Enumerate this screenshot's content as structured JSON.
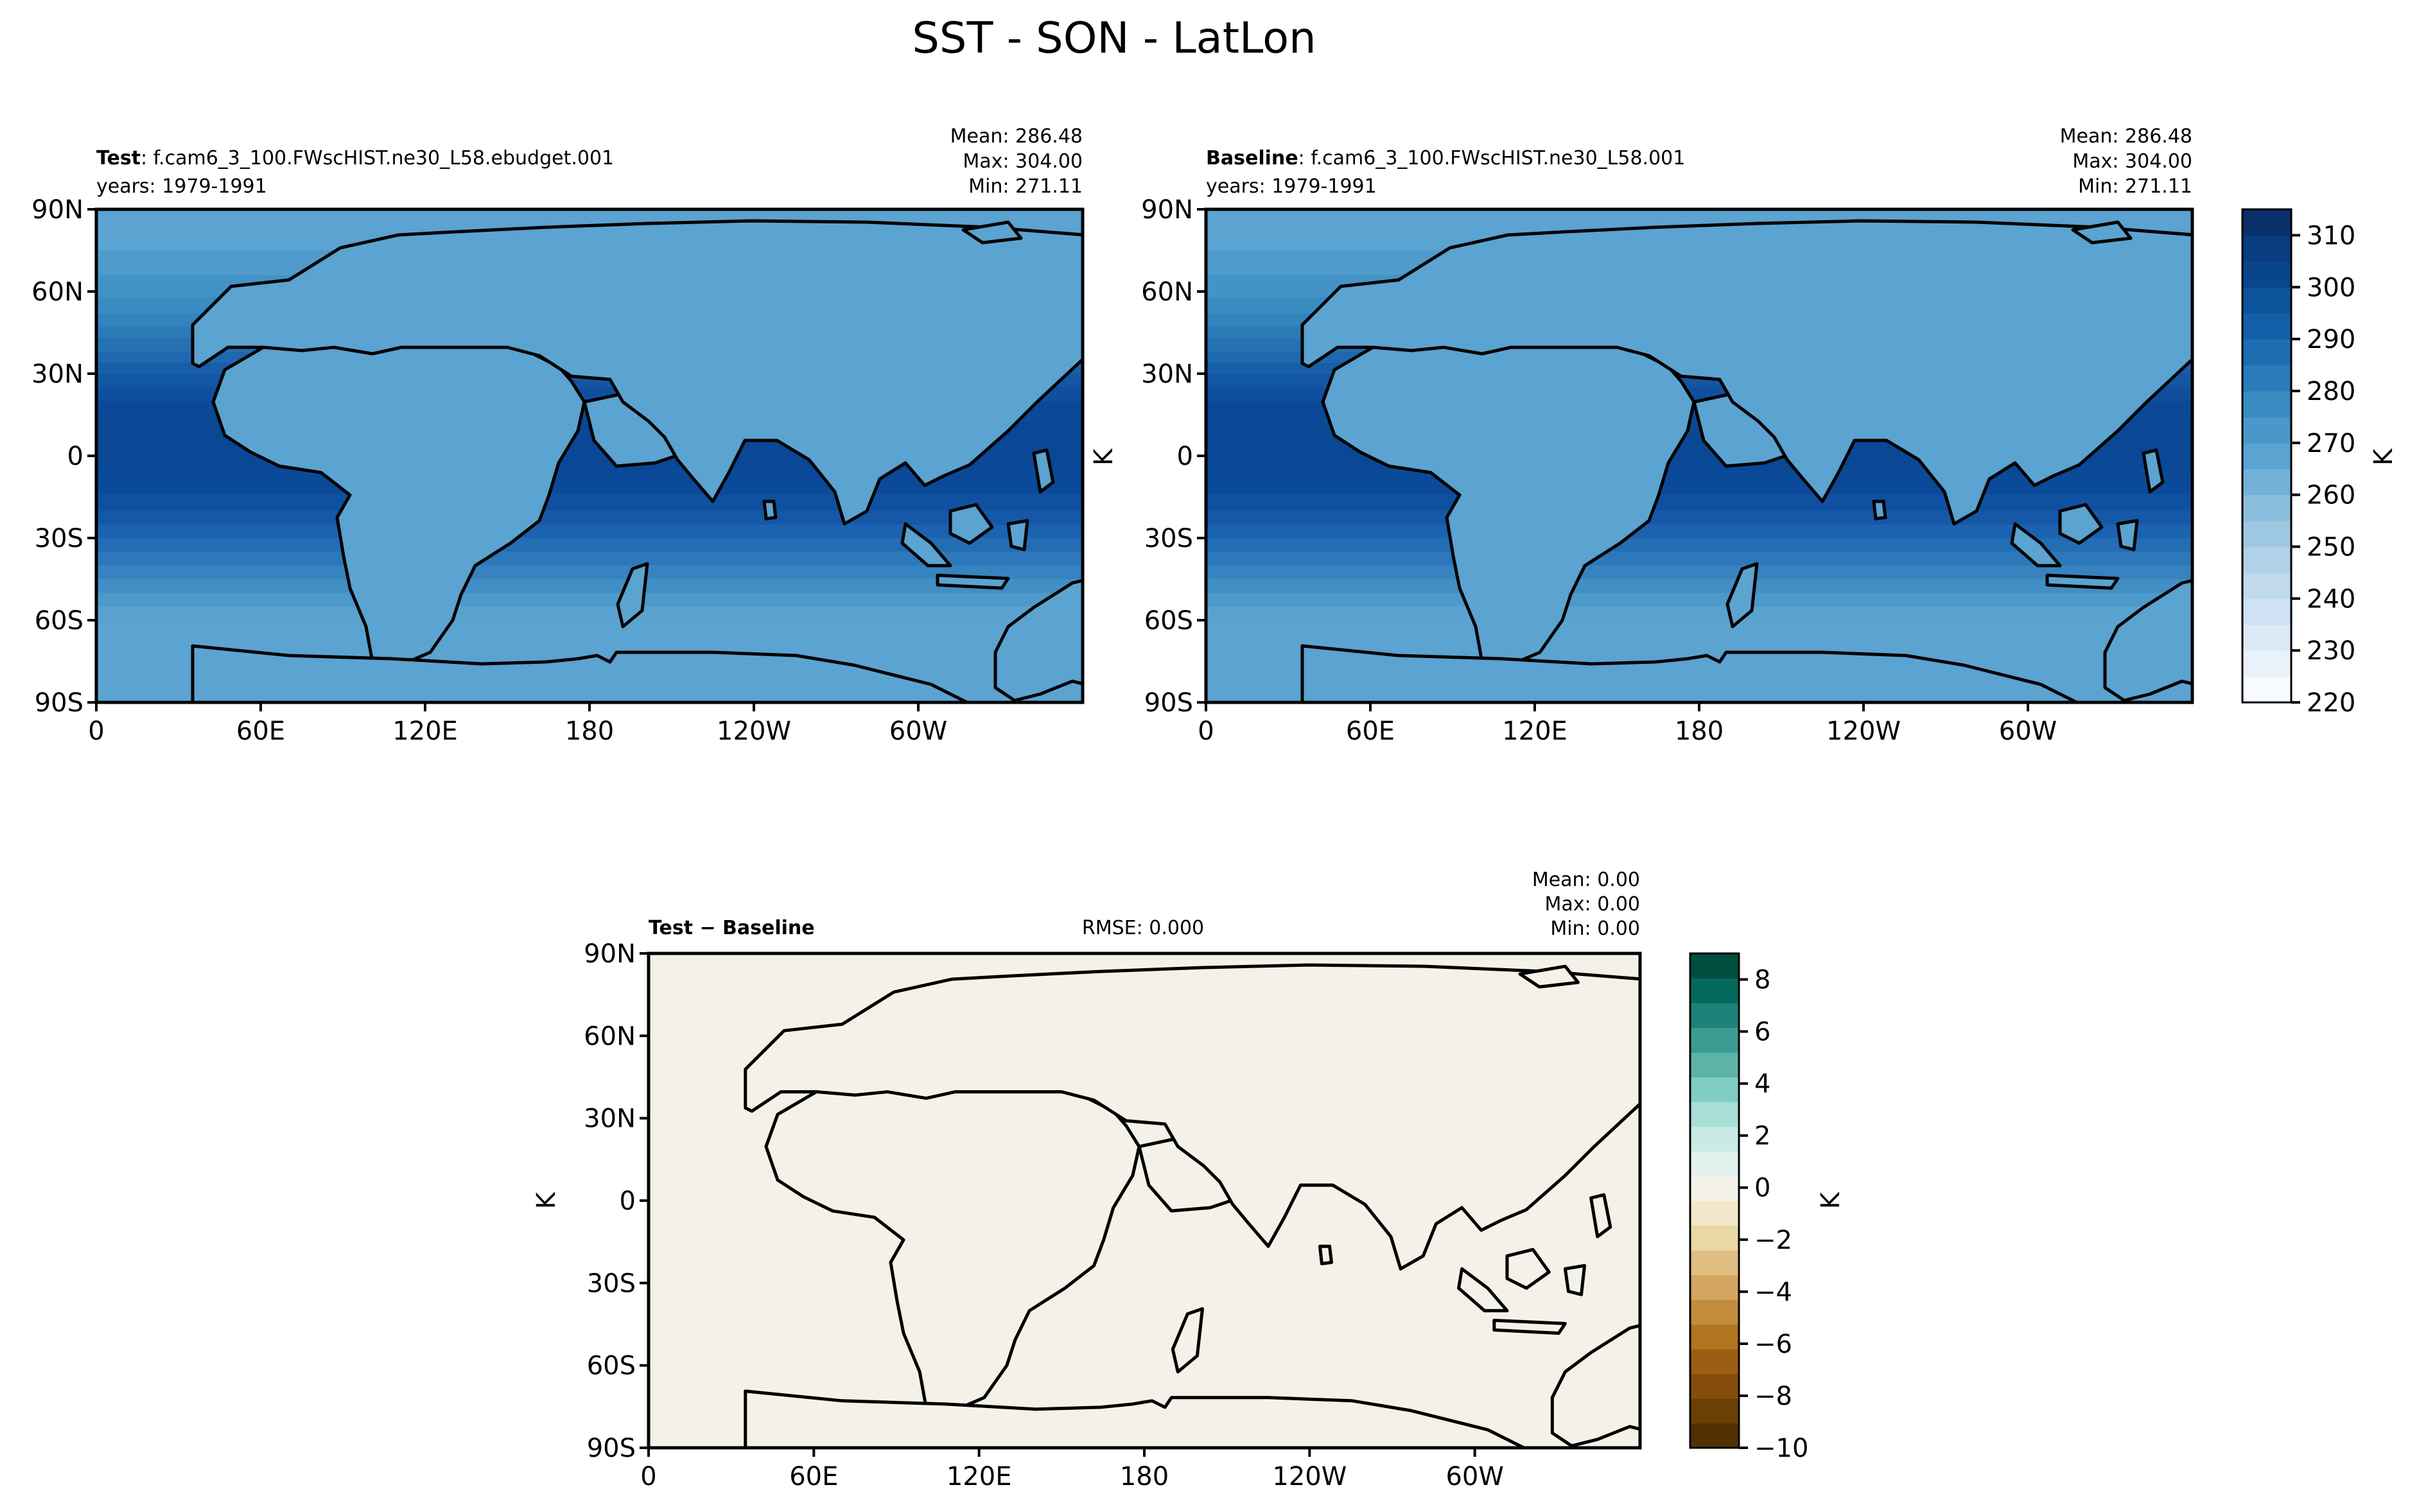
{
  "figure": {
    "title": "SST - SON - LatLon",
    "colors": {
      "land": "#5ba3d0",
      "diff_background": "#f4f2e8",
      "coast": "#000000"
    }
  },
  "panels": [
    {
      "id": "test",
      "label_bold": "Test",
      "label_rest": ": f.cam6_3_100.FWscHIST.ne30_L58.ebudget.001",
      "years": "years: 1979-1991",
      "stats": [
        "Mean: 286.48",
        "Max: 304.00",
        "Min: 271.11"
      ],
      "ylabel": "K",
      "ylabel_visible": false
    },
    {
      "id": "baseline",
      "label_bold": "Baseline",
      "label_rest": ": f.cam6_3_100.FWscHIST.ne30_L58.001",
      "years": "years: 1979-1991",
      "stats": [
        "Mean: 286.48",
        "Max: 304.00",
        "Min: 271.11"
      ],
      "ylabel": "K",
      "ylabel_visible": true
    },
    {
      "id": "diff",
      "label_bold": "Test − Baseline",
      "rmse": "RMSE: 0.000",
      "stats": [
        "Mean:  0.00",
        "Max:  0.00",
        "Min:  0.00"
      ],
      "ylabel": "K",
      "ylabel_visible": true
    }
  ],
  "axes": {
    "lat_ticks": [
      "90N",
      "60N",
      "30N",
      "0",
      "30S",
      "60S",
      "90S"
    ],
    "lon_ticks": [
      "0",
      "60E",
      "120E",
      "180",
      "120W",
      "60W"
    ]
  },
  "colorbars": [
    {
      "id": "sst",
      "label": "K",
      "min": 220,
      "max": 315,
      "tick_labels": [
        "310",
        "300",
        "290",
        "280",
        "270",
        "260",
        "250",
        "240",
        "230",
        "220"
      ],
      "tick_values": [
        310,
        300,
        290,
        280,
        270,
        260,
        250,
        240,
        230,
        220
      ],
      "colors": [
        "#f7fbff",
        "#e9f2fa",
        "#dce9f6",
        "#cfe1f2",
        "#c1d9ed",
        "#b0d1e8",
        "#9ec8e2",
        "#8abddc",
        "#73b2d8",
        "#5ba3d0",
        "#4a98c9",
        "#3a8bc2",
        "#2b7bba",
        "#1e6db2",
        "#1460a8",
        "#0d539c",
        "#08458a",
        "#083d7f",
        "#08306b"
      ]
    },
    {
      "id": "diff",
      "label": "K",
      "min": -10,
      "max": 9,
      "tick_labels": [
        "8",
        "6",
        "4",
        "2",
        "0",
        "−2",
        "−4",
        "−6",
        "−8",
        "−10"
      ],
      "tick_values": [
        8,
        6,
        4,
        2,
        0,
        -2,
        -4,
        -6,
        -8,
        -10
      ],
      "colors": [
        "#543005",
        "#6c3f06",
        "#844e0a",
        "#9b5e13",
        "#b1741f",
        "#c38c3c",
        "#d2a65f",
        "#dfbf82",
        "#ead7a6",
        "#f2e7c9",
        "#f4f2e8",
        "#e2f1ee",
        "#c9eae5",
        "#a9dfd6",
        "#80cdc1",
        "#5cb4a9",
        "#3a9c91",
        "#1f8278",
        "#056a5d",
        "#01503f"
      ]
    }
  ],
  "sst_field": {
    "band_edges_lat": [
      90,
      75,
      66,
      58,
      52,
      47,
      43,
      38,
      34,
      30,
      25,
      20,
      12,
      -5,
      -14,
      -20,
      -25,
      -30,
      -35,
      -40,
      -45,
      -50,
      -55,
      -60,
      -90
    ],
    "band_colors": [
      "#5ba3d0",
      "#4f9bcc",
      "#4493c7",
      "#3a8bc2",
      "#3383bd",
      "#2c7ab8",
      "#2571b4",
      "#1e68af",
      "#185fa9",
      "#1357a3",
      "#0f4f9d",
      "#0b4997",
      "#0a4794",
      "#0b4a98",
      "#0f50a0",
      "#1558a8",
      "#1b62b0",
      "#236db5",
      "#2c78ba",
      "#3683bf",
      "#418fc4",
      "#4d99ca",
      "#59a2cf",
      "#5ba3d0"
    ]
  }
}
